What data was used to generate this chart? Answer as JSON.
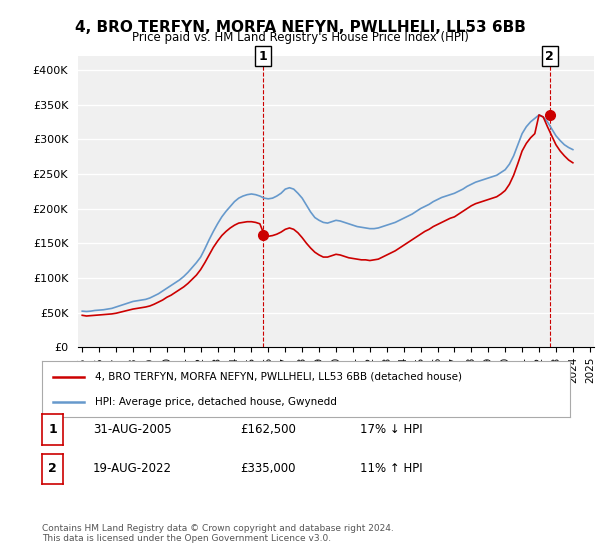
{
  "title": "4, BRO TERFYN, MORFA NEFYN, PWLLHELI, LL53 6BB",
  "subtitle": "Price paid vs. HM Land Registry's House Price Index (HPI)",
  "xlabel": "",
  "ylabel": "",
  "ylim": [
    0,
    420000
  ],
  "yticks": [
    0,
    50000,
    100000,
    150000,
    200000,
    250000,
    300000,
    350000,
    400000
  ],
  "ytick_labels": [
    "£0",
    "£50K",
    "£100K",
    "£150K",
    "£200K",
    "£250K",
    "£300K",
    "£350K",
    "£400K"
  ],
  "background_color": "#ffffff",
  "plot_bg_color": "#f0f0f0",
  "grid_color": "#ffffff",
  "red_color": "#cc0000",
  "blue_color": "#6699cc",
  "marker1_date": 2005.67,
  "marker1_label": "1",
  "marker1_price": 162500,
  "marker2_date": 2022.64,
  "marker2_label": "2",
  "marker2_price": 335000,
  "legend_line1": "4, BRO TERFYN, MORFA NEFYN, PWLLHELI, LL53 6BB (detached house)",
  "legend_line2": "HPI: Average price, detached house, Gwynedd",
  "table_row1": [
    "1",
    "31-AUG-2005",
    "£162,500",
    "17% ↓ HPI"
  ],
  "table_row2": [
    "2",
    "19-AUG-2022",
    "£335,000",
    "11% ↑ HPI"
  ],
  "footer": "Contains HM Land Registry data © Crown copyright and database right 2024.\nThis data is licensed under the Open Government Licence v3.0.",
  "hpi_years": [
    1995.0,
    1995.25,
    1995.5,
    1995.75,
    1996.0,
    1996.25,
    1996.5,
    1996.75,
    1997.0,
    1997.25,
    1997.5,
    1997.75,
    1998.0,
    1998.25,
    1998.5,
    1998.75,
    1999.0,
    1999.25,
    1999.5,
    1999.75,
    2000.0,
    2000.25,
    2000.5,
    2000.75,
    2001.0,
    2001.25,
    2001.5,
    2001.75,
    2002.0,
    2002.25,
    2002.5,
    2002.75,
    2003.0,
    2003.25,
    2003.5,
    2003.75,
    2004.0,
    2004.25,
    2004.5,
    2004.75,
    2005.0,
    2005.25,
    2005.5,
    2005.75,
    2006.0,
    2006.25,
    2006.5,
    2006.75,
    2007.0,
    2007.25,
    2007.5,
    2007.75,
    2008.0,
    2008.25,
    2008.5,
    2008.75,
    2009.0,
    2009.25,
    2009.5,
    2009.75,
    2010.0,
    2010.25,
    2010.5,
    2010.75,
    2011.0,
    2011.25,
    2011.5,
    2011.75,
    2012.0,
    2012.25,
    2012.5,
    2012.75,
    2013.0,
    2013.25,
    2013.5,
    2013.75,
    2014.0,
    2014.25,
    2014.5,
    2014.75,
    2015.0,
    2015.25,
    2015.5,
    2015.75,
    2016.0,
    2016.25,
    2016.5,
    2016.75,
    2017.0,
    2017.25,
    2017.5,
    2017.75,
    2018.0,
    2018.25,
    2018.5,
    2018.75,
    2019.0,
    2019.25,
    2019.5,
    2019.75,
    2020.0,
    2020.25,
    2020.5,
    2020.75,
    2021.0,
    2021.25,
    2021.5,
    2021.75,
    2022.0,
    2022.25,
    2022.5,
    2022.75,
    2023.0,
    2023.25,
    2023.5,
    2023.75,
    2024.0
  ],
  "hpi_values": [
    52000,
    51500,
    52000,
    53000,
    53500,
    54000,
    55000,
    56000,
    58000,
    60000,
    62000,
    64000,
    66000,
    67000,
    68000,
    69000,
    71000,
    74000,
    77000,
    81000,
    85000,
    89000,
    93000,
    97000,
    102000,
    108000,
    115000,
    122000,
    130000,
    142000,
    155000,
    167000,
    178000,
    188000,
    196000,
    203000,
    210000,
    215000,
    218000,
    220000,
    221000,
    220000,
    218000,
    215000,
    214000,
    215000,
    218000,
    222000,
    228000,
    230000,
    228000,
    222000,
    215000,
    205000,
    195000,
    187000,
    183000,
    180000,
    179000,
    181000,
    183000,
    182000,
    180000,
    178000,
    176000,
    174000,
    173000,
    172000,
    171000,
    171000,
    172000,
    174000,
    176000,
    178000,
    180000,
    183000,
    186000,
    189000,
    192000,
    196000,
    200000,
    203000,
    206000,
    210000,
    213000,
    216000,
    218000,
    220000,
    222000,
    225000,
    228000,
    232000,
    235000,
    238000,
    240000,
    242000,
    244000,
    246000,
    248000,
    252000,
    256000,
    264000,
    276000,
    292000,
    308000,
    318000,
    325000,
    330000,
    335000,
    332000,
    325000,
    315000,
    305000,
    298000,
    292000,
    288000,
    285000
  ],
  "red_years": [
    1995.0,
    1995.25,
    1995.5,
    1995.75,
    1996.0,
    1996.25,
    1996.5,
    1996.75,
    1997.0,
    1997.25,
    1997.5,
    1997.75,
    1998.0,
    1998.25,
    1998.5,
    1998.75,
    1999.0,
    1999.25,
    1999.5,
    1999.75,
    2000.0,
    2000.25,
    2000.5,
    2000.75,
    2001.0,
    2001.25,
    2001.5,
    2001.75,
    2002.0,
    2002.25,
    2002.5,
    2002.75,
    2003.0,
    2003.25,
    2003.5,
    2003.75,
    2004.0,
    2004.25,
    2004.5,
    2004.75,
    2005.0,
    2005.25,
    2005.5,
    2005.75,
    2006.0,
    2006.25,
    2006.5,
    2006.75,
    2007.0,
    2007.25,
    2007.5,
    2007.75,
    2008.0,
    2008.25,
    2008.5,
    2008.75,
    2009.0,
    2009.25,
    2009.5,
    2009.75,
    2010.0,
    2010.25,
    2010.5,
    2010.75,
    2011.0,
    2011.25,
    2011.5,
    2011.75,
    2012.0,
    2012.25,
    2012.5,
    2012.75,
    2013.0,
    2013.25,
    2013.5,
    2013.75,
    2014.0,
    2014.25,
    2014.5,
    2014.75,
    2015.0,
    2015.25,
    2015.5,
    2015.75,
    2016.0,
    2016.25,
    2016.5,
    2016.75,
    2017.0,
    2017.25,
    2017.5,
    2017.75,
    2018.0,
    2018.25,
    2018.5,
    2018.75,
    2019.0,
    2019.25,
    2019.5,
    2019.75,
    2020.0,
    2020.25,
    2020.5,
    2020.75,
    2021.0,
    2021.25,
    2021.5,
    2021.75,
    2022.0,
    2022.25,
    2022.5,
    2022.75,
    2023.0,
    2023.25,
    2023.5,
    2023.75,
    2024.0
  ],
  "red_values": [
    46000,
    45000,
    45500,
    46000,
    46500,
    47000,
    47500,
    48000,
    49000,
    50500,
    52000,
    53500,
    55000,
    56000,
    57000,
    58000,
    59500,
    62000,
    65000,
    68000,
    72000,
    75000,
    79000,
    83000,
    87000,
    92000,
    98000,
    104000,
    112000,
    122000,
    133000,
    144000,
    153000,
    161000,
    167000,
    172000,
    176000,
    179000,
    180000,
    181000,
    181000,
    180000,
    178000,
    162500,
    160000,
    161000,
    163000,
    166000,
    170000,
    172000,
    170000,
    165000,
    158000,
    150000,
    143000,
    137000,
    133000,
    130000,
    130000,
    132000,
    134000,
    133000,
    131000,
    129000,
    128000,
    127000,
    126000,
    126000,
    125000,
    126000,
    127000,
    130000,
    133000,
    136000,
    139000,
    143000,
    147000,
    151000,
    155000,
    159000,
    163000,
    167000,
    170000,
    174000,
    177000,
    180000,
    183000,
    186000,
    188000,
    192000,
    196000,
    200000,
    204000,
    207000,
    209000,
    211000,
    213000,
    215000,
    217000,
    221000,
    226000,
    235000,
    248000,
    265000,
    283000,
    294000,
    302000,
    308000,
    335000,
    332000,
    318000,
    305000,
    292000,
    283000,
    276000,
    270000,
    266000
  ],
  "xtick_years": [
    1995,
    1996,
    1997,
    1998,
    1999,
    2000,
    2001,
    2002,
    2003,
    2004,
    2005,
    2006,
    2007,
    2008,
    2009,
    2010,
    2011,
    2012,
    2013,
    2014,
    2015,
    2016,
    2017,
    2018,
    2019,
    2020,
    2021,
    2022,
    2023,
    2024,
    2025
  ]
}
